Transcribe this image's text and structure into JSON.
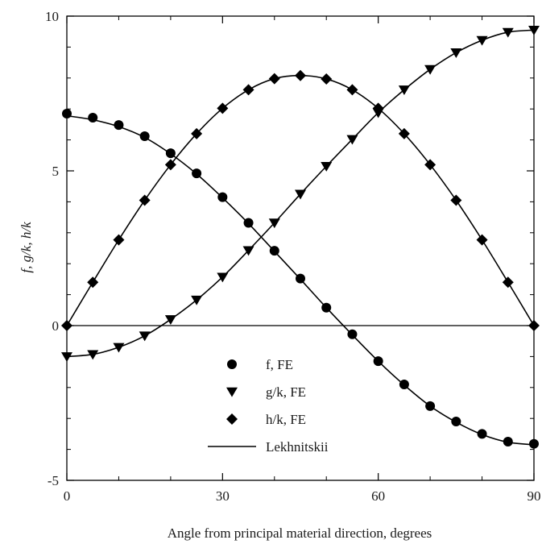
{
  "chart_data": {
    "type": "line",
    "xlabel": "Angle from principal material direction, degrees",
    "ylabel": "f, g/k, h/k",
    "xlim": [
      0,
      90
    ],
    "ylim": [
      -5,
      10
    ],
    "xticks": [
      "0",
      "30",
      "60",
      "90"
    ],
    "yticks": [
      "-5",
      "0",
      "5",
      "10"
    ],
    "legend_position": "center-bottom",
    "series": [
      {
        "name": "f, FE",
        "marker": "circle",
        "x": [
          0,
          5,
          10,
          15,
          20,
          25,
          30,
          35,
          40,
          45,
          50,
          55,
          60,
          65,
          70,
          75,
          80,
          85,
          90
        ],
        "y": [
          6.85,
          6.72,
          6.48,
          6.12,
          5.57,
          4.92,
          4.15,
          3.32,
          2.42,
          1.52,
          0.58,
          -0.28,
          -1.15,
          -1.9,
          -2.6,
          -3.1,
          -3.5,
          -3.75,
          -3.82
        ]
      },
      {
        "name": "g/k, FE",
        "marker": "triangle-down",
        "x": [
          0,
          5,
          10,
          15,
          20,
          25,
          30,
          35,
          40,
          45,
          50,
          55,
          60,
          65,
          70,
          75,
          80,
          85,
          90
        ],
        "y": [
          -1.0,
          -0.93,
          -0.7,
          -0.33,
          0.2,
          0.83,
          1.57,
          2.43,
          3.32,
          4.25,
          5.15,
          6.02,
          6.88,
          7.62,
          8.28,
          8.82,
          9.22,
          9.48,
          9.55
        ]
      },
      {
        "name": "h/k, FE",
        "marker": "diamond",
        "x": [
          0,
          5,
          10,
          15,
          20,
          25,
          30,
          35,
          40,
          45,
          50,
          55,
          60,
          65,
          70,
          75,
          80,
          85,
          90
        ],
        "y": [
          0,
          1.4,
          2.77,
          4.05,
          5.2,
          6.2,
          7.02,
          7.62,
          7.98,
          8.08,
          7.97,
          7.62,
          7.02,
          6.2,
          5.2,
          4.05,
          2.77,
          1.4,
          0
        ]
      },
      {
        "name": "Lekhnitskii",
        "marker": "line",
        "curves": [
          {
            "x": [
              0,
              5,
              10,
              15,
              20,
              25,
              30,
              35,
              40,
              45,
              50,
              55,
              60,
              65,
              70,
              75,
              80,
              85,
              90
            ],
            "y": [
              6.78,
              6.65,
              6.43,
              6.08,
              5.55,
              4.9,
              4.13,
              3.3,
              2.4,
              1.5,
              0.58,
              -0.3,
              -1.15,
              -1.92,
              -2.6,
              -3.12,
              -3.52,
              -3.77,
              -3.85
            ]
          },
          {
            "x": [
              0,
              5,
              10,
              15,
              20,
              25,
              30,
              35,
              40,
              45,
              50,
              55,
              60,
              65,
              70,
              75,
              80,
              85,
              90
            ],
            "y": [
              -1.0,
              -0.93,
              -0.7,
              -0.33,
              0.2,
              0.83,
              1.57,
              2.43,
              3.32,
              4.25,
              5.15,
              6.02,
              6.88,
              7.62,
              8.28,
              8.82,
              9.22,
              9.48,
              9.55
            ]
          },
          {
            "x": [
              0,
              5,
              10,
              15,
              20,
              25,
              30,
              35,
              40,
              45,
              50,
              55,
              60,
              65,
              70,
              75,
              80,
              85,
              90
            ],
            "y": [
              0,
              1.4,
              2.77,
              4.05,
              5.2,
              6.2,
              7.02,
              7.62,
              7.98,
              8.08,
              7.97,
              7.62,
              7.02,
              6.2,
              5.2,
              4.05,
              2.77,
              1.4,
              0
            ]
          }
        ]
      }
    ],
    "zero_line": true,
    "grid": false,
    "colors": {
      "ink": "#000000"
    }
  }
}
